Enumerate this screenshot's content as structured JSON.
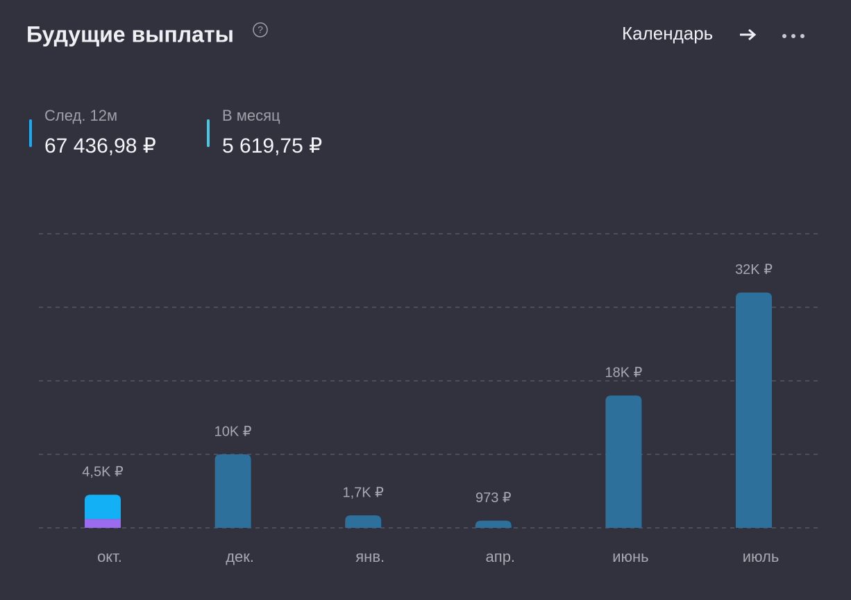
{
  "header": {
    "title": "Будущие выплаты",
    "help": "?",
    "link": "Календарь"
  },
  "summary": [
    {
      "label": "След. 12м",
      "value": "67 436,98 ₽",
      "color": "#1aa9f2"
    },
    {
      "label": "В месяц",
      "value": "5 619,75 ₽",
      "color": "#4cc4e2"
    }
  ],
  "chart_data": {
    "type": "bar",
    "categories": [
      "окт.",
      "дек.",
      "янв.",
      "апр.",
      "июнь",
      "июль"
    ],
    "series": [
      {
        "color": "#9b6cf0",
        "values": [
          1200,
          null,
          null,
          null,
          null,
          null
        ]
      },
      {
        "color": "#14b0f5",
        "values": [
          3300,
          null,
          null,
          null,
          null,
          null
        ]
      },
      {
        "color": "#2e709c",
        "values": [
          null,
          10000,
          1700,
          973,
          18000,
          32000
        ]
      }
    ],
    "value_labels": [
      "4,5K ₽",
      "10K ₽",
      "1,7K ₽",
      "973 ₽",
      "18K ₽",
      "32K ₽"
    ],
    "ylim": [
      0,
      40000
    ],
    "yticks": [
      0,
      10000,
      20000,
      30000,
      40000
    ],
    "grid": true
  }
}
